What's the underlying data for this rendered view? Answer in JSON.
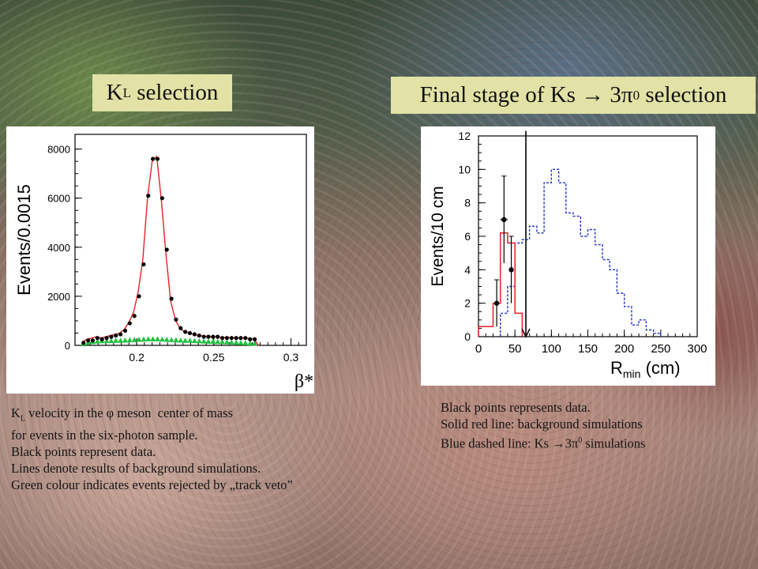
{
  "titles": {
    "left": {
      "k": "K",
      "sub": "L",
      "rest": " selection"
    },
    "right": {
      "pre": "Final stage of Ks → 3π",
      "sup": "0",
      "post": " selection"
    }
  },
  "captions": {
    "left": [
      {
        "pre": "K",
        "sub": "L",
        "post": " velocity in the φ meson  center of mass"
      },
      {
        "pre": "for events in the six-photon sample."
      },
      {
        "pre": "Black points represent data."
      },
      {
        "pre": "Lines denote results of background simulations."
      },
      {
        "pre": "Green colour indicates events rejected by „track veto”"
      }
    ],
    "right": [
      {
        "pre": "Black points represents data."
      },
      {
        "pre": "Solid red line: background simulations"
      },
      {
        "pre": "Blue dashed line: Ks →3π",
        "sup": "0",
        "post": " simulations"
      }
    ]
  },
  "chart_data": [
    {
      "type": "line",
      "ylabel": "Events/0.0015",
      "xlabel": "β*",
      "xlim": [
        0.16,
        0.31
      ],
      "ylim": [
        0,
        8600
      ],
      "xticks": [
        0.2,
        0.25,
        0.3
      ],
      "xtick_labels": [
        "0.2",
        "0.25",
        "0.3"
      ],
      "yticks": [
        0,
        2000,
        4000,
        6000,
        8000
      ],
      "ytick_labels": [
        "0",
        "2000",
        "4000",
        "6000",
        "8000"
      ],
      "colors": {
        "data": "#000000",
        "background": "#e8202a",
        "rejected": "#22c040"
      },
      "series": [
        {
          "kind": "data",
          "x": [
            0.1655,
            0.1685,
            0.1715,
            0.1745,
            0.1775,
            0.1805,
            0.1835,
            0.1865,
            0.1895,
            0.1925,
            0.1955,
            0.1985,
            0.2015,
            0.2045,
            0.2075,
            0.2105,
            0.2135,
            0.2165,
            0.2195,
            0.2225,
            0.2255,
            0.2285,
            0.2315,
            0.2345,
            0.2375,
            0.2405,
            0.2435,
            0.2465,
            0.2495,
            0.2525,
            0.2555,
            0.2585,
            0.2615,
            0.2645,
            0.2675,
            0.2705,
            0.2735,
            0.2765
          ],
          "y": [
            100,
            200,
            200,
            300,
            250,
            300,
            350,
            400,
            450,
            600,
            900,
            1200,
            2000,
            3300,
            6100,
            7600,
            7600,
            6000,
            3900,
            1900,
            1050,
            700,
            550,
            500,
            450,
            400,
            350,
            350,
            350,
            350,
            300,
            300,
            300,
            300,
            300,
            300,
            250,
            250
          ]
        },
        {
          "kind": "background",
          "x": [
            0.165,
            0.168,
            0.171,
            0.174,
            0.177,
            0.18,
            0.183,
            0.186,
            0.189,
            0.192,
            0.195,
            0.198,
            0.201,
            0.204,
            0.207,
            0.21,
            0.213,
            0.216,
            0.219,
            0.222,
            0.225,
            0.228,
            0.231,
            0.234,
            0.237,
            0.24,
            0.243,
            0.246,
            0.249,
            0.252,
            0.255,
            0.258,
            0.261,
            0.264,
            0.267,
            0.27,
            0.273,
            0.276,
            0.279
          ],
          "y": [
            150,
            250,
            300,
            350,
            300,
            350,
            400,
            450,
            500,
            650,
            950,
            1350,
            2200,
            3500,
            6000,
            7500,
            7700,
            5900,
            3700,
            1800,
            1050,
            700,
            550,
            500,
            450,
            400,
            380,
            360,
            350,
            340,
            330,
            320,
            310,
            310,
            300,
            300,
            280,
            250,
            0
          ]
        },
        {
          "kind": "rejected",
          "x": [
            0.1655,
            0.1685,
            0.1715,
            0.1745,
            0.1775,
            0.1805,
            0.1835,
            0.1865,
            0.1895,
            0.1925,
            0.1955,
            0.1985,
            0.2015,
            0.2045,
            0.2075,
            0.2105,
            0.2135,
            0.2165,
            0.2195,
            0.2225,
            0.2255,
            0.2285,
            0.2315,
            0.2345,
            0.2375,
            0.2405,
            0.2435,
            0.2465,
            0.2495,
            0.2525,
            0.2555,
            0.2585,
            0.2615,
            0.2645,
            0.2675,
            0.2705,
            0.2735,
            0.2765
          ],
          "y": [
            60,
            120,
            150,
            170,
            180,
            190,
            190,
            200,
            200,
            210,
            220,
            230,
            240,
            250,
            260,
            260,
            260,
            250,
            240,
            230,
            220,
            210,
            200,
            200,
            190,
            180,
            170,
            160,
            160,
            150,
            150,
            140,
            130,
            120,
            110,
            100,
            90,
            80
          ]
        }
      ]
    },
    {
      "type": "line",
      "ylabel": "Events/10 cm",
      "xlabel": "R",
      "xlabel_sub": "min",
      "xlabel_post": " (cm)",
      "xlim": [
        0,
        300
      ],
      "ylim": [
        0,
        12
      ],
      "xticks": [
        0,
        50,
        100,
        150,
        200,
        250,
        300
      ],
      "xtick_labels": [
        "0",
        "50",
        "100",
        "150",
        "200",
        "250",
        "300"
      ],
      "yticks": [
        0,
        2,
        4,
        6,
        8,
        10,
        12
      ],
      "ytick_labels": [
        "0",
        "2",
        "4",
        "6",
        "8",
        "10",
        "12"
      ],
      "cut_x": 65,
      "colors": {
        "data": "#000000",
        "background": "#e8202a",
        "signal": "#2030c8",
        "cut": "#000000"
      },
      "series": [
        {
          "kind": "background",
          "edges": [
            0,
            20,
            30,
            40,
            50,
            60
          ],
          "values": [
            0.6,
            2,
            6.2,
            5.6,
            1.4
          ]
        },
        {
          "kind": "signal",
          "edges": [
            30,
            40,
            50,
            60,
            70,
            80,
            90,
            100,
            110,
            120,
            130,
            140,
            150,
            160,
            170,
            180,
            190,
            200,
            210,
            220,
            230,
            240,
            250
          ],
          "values": [
            1.4,
            3,
            5.6,
            5.8,
            6.6,
            6.2,
            9.2,
            10,
            9.2,
            7.4,
            7.2,
            6,
            6.4,
            5.5,
            4.6,
            4,
            2.6,
            1.8,
            0.7,
            1,
            0.4,
            0.2
          ]
        },
        {
          "kind": "data",
          "x": [
            25,
            35,
            45
          ],
          "y": [
            2,
            7,
            4
          ],
          "yerr": [
            1.4,
            2.6,
            2
          ],
          "xerr": [
            0,
            5,
            0
          ]
        }
      ]
    }
  ]
}
